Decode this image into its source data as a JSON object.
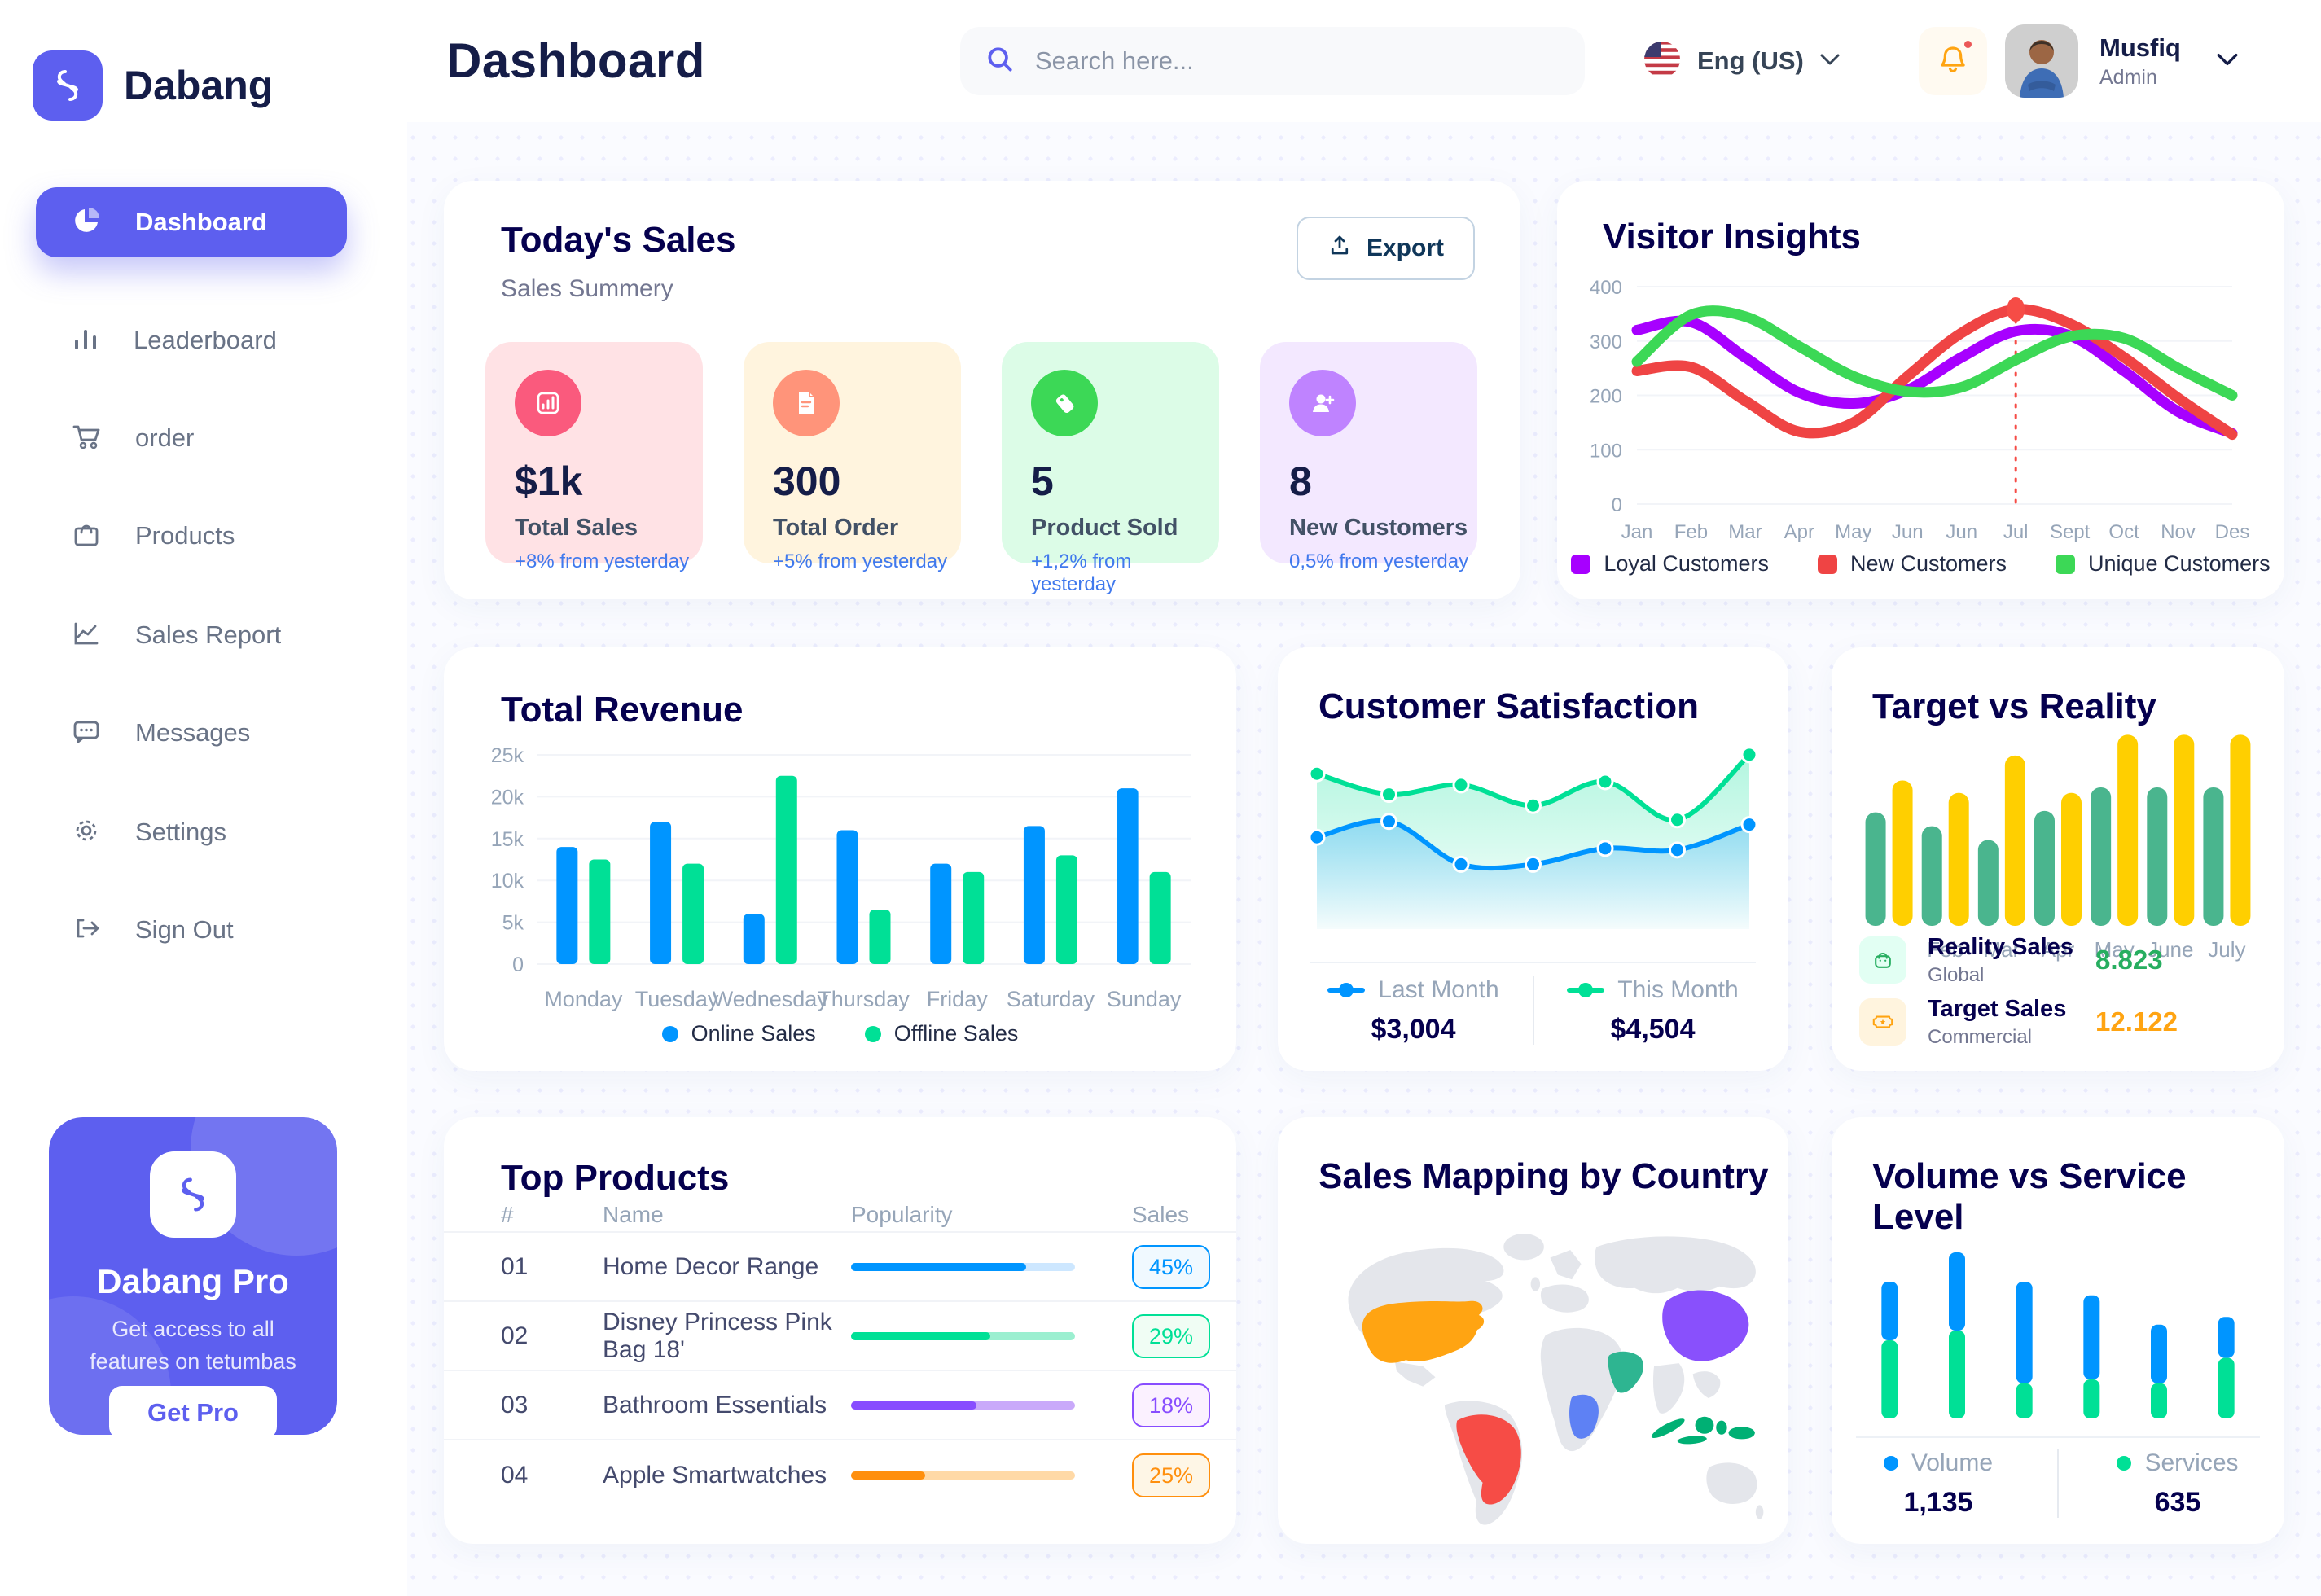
{
  "app": {
    "name": "Dabang"
  },
  "header": {
    "title": "Dashboard",
    "search_placeholder": "Search here...",
    "language": "Eng (US)",
    "user": {
      "name": "Musfiq",
      "role": "Admin"
    }
  },
  "sidebar": {
    "items": [
      {
        "label": "Dashboard",
        "active": true
      },
      {
        "label": "Leaderboard"
      },
      {
        "label": "order"
      },
      {
        "label": "Products"
      },
      {
        "label": "Sales Report"
      },
      {
        "label": "Messages"
      },
      {
        "label": "Settings"
      },
      {
        "label": "Sign Out"
      }
    ],
    "pro": {
      "title": "Dabang Pro",
      "desc": "Get access to all features on tetumbas",
      "cta": "Get Pro"
    }
  },
  "today_sales": {
    "title": "Today's Sales",
    "subtitle": "Sales Summery",
    "export_label": "Export",
    "cards": [
      {
        "value": "$1k",
        "label": "Total Sales",
        "delta": "+8% from yesterday",
        "bg": "#FFE2E5",
        "accent": "#FA5A7D"
      },
      {
        "value": "300",
        "label": "Total Order",
        "delta": "+5% from yesterday",
        "bg": "#FFF4DE",
        "accent": "#FF947A"
      },
      {
        "value": "5",
        "label": "Product Sold",
        "delta": "+1,2% from yesterday",
        "bg": "#DCFCE7",
        "accent": "#3CD856"
      },
      {
        "value": "8",
        "label": "New Customers",
        "delta": "0,5% from yesterday",
        "bg": "#F3E8FF",
        "accent": "#BF83FF"
      }
    ]
  },
  "chart_data": [
    {
      "id": "visitor_insights",
      "type": "line",
      "title": "Visitor Insights",
      "x": [
        "Jan",
        "Feb",
        "Mar",
        "Apr",
        "May",
        "Jun",
        "Jun",
        "Jul",
        "Sept",
        "Oct",
        "Nov",
        "Des"
      ],
      "ylim": [
        0,
        400
      ],
      "yticks": [
        0,
        100,
        200,
        300,
        400
      ],
      "grid": true,
      "legend_position": "bottom",
      "marker": {
        "series": 1,
        "index": 7
      },
      "series": [
        {
          "name": "Loyal Customers",
          "color": "#A700FF",
          "values": [
            320,
            335,
            270,
            205,
            185,
            210,
            270,
            318,
            310,
            245,
            170,
            130
          ]
        },
        {
          "name": "New Customers",
          "color": "#EF4444",
          "values": [
            245,
            252,
            190,
            133,
            150,
            235,
            315,
            358,
            332,
            270,
            195,
            128
          ]
        },
        {
          "name": "Unique Customers",
          "color": "#3CD856",
          "values": [
            262,
            348,
            345,
            290,
            235,
            207,
            215,
            265,
            308,
            305,
            250,
            200
          ]
        }
      ]
    },
    {
      "id": "total_revenue",
      "type": "bar",
      "title": "Total Revenue",
      "categories": [
        "Monday",
        "Tuesday",
        "Wednesday",
        "Thursday",
        "Friday",
        "Saturday",
        "Sunday"
      ],
      "ylim": [
        0,
        25000
      ],
      "ytick_labels": [
        "0",
        "5k",
        "10k",
        "15k",
        "20k",
        "25k"
      ],
      "grid": true,
      "legend_position": "bottom",
      "series": [
        {
          "name": "Online Sales",
          "color": "#0095FF",
          "values": [
            14000,
            17000,
            6000,
            16000,
            12000,
            16500,
            21000
          ]
        },
        {
          "name": "Offline Sales",
          "color": "#00E096",
          "values": [
            12500,
            12000,
            22500,
            6500,
            11000,
            13000,
            11000
          ]
        }
      ]
    },
    {
      "id": "customer_satisfaction",
      "type": "area",
      "title": "Customer Satisfaction",
      "ylim": [
        0,
        100
      ],
      "grid": false,
      "legend_position": "bottom",
      "series": [
        {
          "name": "Last Month",
          "color": "#0095FF",
          "total": "$3,004",
          "values": [
            45,
            55,
            28,
            28,
            38,
            37,
            53
          ]
        },
        {
          "name": "This Month",
          "color": "#00E096",
          "total": "$4,504",
          "values": [
            85,
            72,
            78,
            65,
            80,
            56,
            97
          ]
        }
      ]
    },
    {
      "id": "target_vs_reality",
      "type": "bar",
      "title": "Target vs Reality",
      "categories": [
        "Jan",
        "Feb",
        "Mar",
        "Apr",
        "May",
        "June",
        "July"
      ],
      "ylim": [
        0,
        14
      ],
      "grid": false,
      "series": [
        {
          "name": "Reality Sales",
          "color": "#4AB58E",
          "values": [
            8.2,
            7.2,
            6.2,
            8.3,
            10,
            10,
            10
          ]
        },
        {
          "name": "Target Sales",
          "color": "#FFCF00",
          "values": [
            10.5,
            9.6,
            12.3,
            9.6,
            13.8,
            13.8,
            13.8
          ]
        }
      ],
      "legend_rows": [
        {
          "label": "Reality Sales",
          "sublabel": "Global",
          "value": "8.823",
          "value_color": "#27AE60",
          "icon_bg": "#E2FFF3"
        },
        {
          "label": "Target Sales",
          "sublabel": "Commercial",
          "value": "12.122",
          "value_color": "#FFA412",
          "icon_bg": "#FFF4DE"
        }
      ]
    },
    {
      "id": "volume_vs_service",
      "type": "stacked-bar",
      "title": "Volume vs Service Level",
      "ylim": [
        0,
        1000
      ],
      "legend_position": "bottom",
      "series": [
        {
          "name": "Volume",
          "color": "#0095FF",
          "total": "1,135",
          "values": [
            300,
            400,
            520,
            430,
            300,
            210
          ]
        },
        {
          "name": "Services",
          "color": "#00E096",
          "total": "635",
          "values": [
            400,
            450,
            180,
            200,
            180,
            310
          ]
        }
      ]
    }
  ],
  "top_products": {
    "title": "Top Products",
    "headers": [
      "#",
      "Name",
      "Popularity",
      "Sales"
    ],
    "rows": [
      {
        "num": "01",
        "name": "Home Decor Range",
        "popularity": 78,
        "sales": "45%",
        "color": "#0095FF",
        "track": "#CDE7FF",
        "badge_bg": "#F0F9FF"
      },
      {
        "num": "02",
        "name": "Disney Princess Pink Bag 18'",
        "popularity": 62,
        "sales": "29%",
        "color": "#00E096",
        "track": "#9BEFD0",
        "badge_bg": "#F0FDF4"
      },
      {
        "num": "03",
        "name": "Bathroom Essentials",
        "popularity": 56,
        "sales": "18%",
        "color": "#884DFF",
        "track": "#C9A9FA",
        "badge_bg": "#FBF1FF"
      },
      {
        "num": "04",
        "name": "Apple Smartwatches",
        "popularity": 33,
        "sales": "25%",
        "color": "#FF8F0D",
        "track": "#FFD9A6",
        "badge_bg": "#FEF6E6"
      }
    ]
  },
  "sales_map": {
    "title": "Sales Mapping by Country",
    "countries": [
      {
        "name": "United States",
        "color": "#FFA412"
      },
      {
        "name": "Brazil",
        "color": "#F64C46"
      },
      {
        "name": "China",
        "color": "#8950FC"
      },
      {
        "name": "Saudi Arabia",
        "color": "#2EB591"
      },
      {
        "name": "Democratic Republic of Congo",
        "color": "#5E81F4"
      },
      {
        "name": "Indonesia",
        "color": "#00B074"
      }
    ]
  }
}
